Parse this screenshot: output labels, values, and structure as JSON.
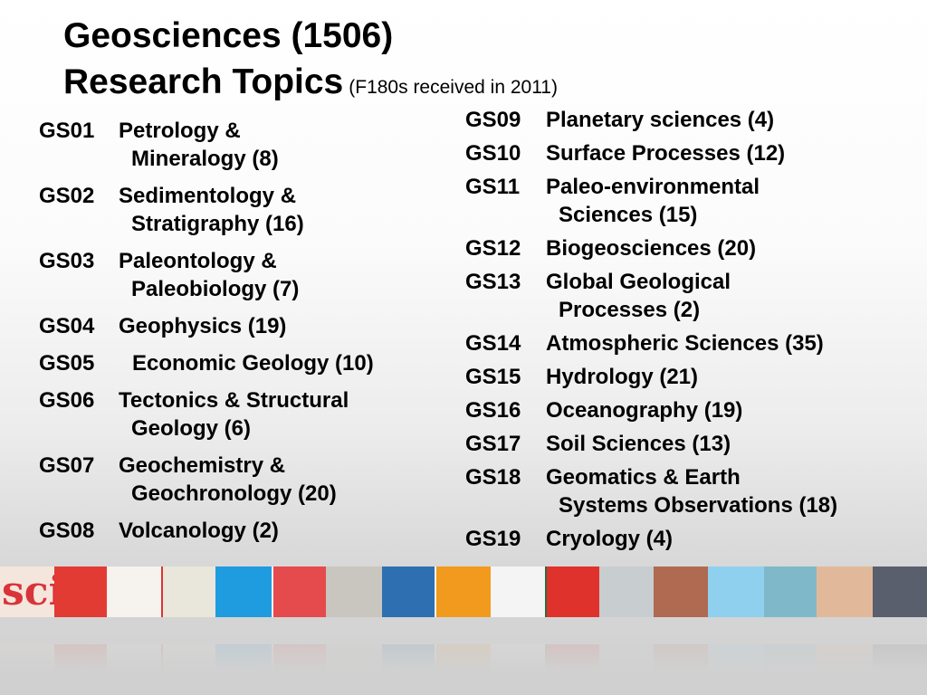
{
  "title": {
    "line1": "Geosciences (1506)",
    "line2": "Research Topics",
    "note": "(F180s received in 2011)"
  },
  "topics_left": [
    {
      "code": "GS01",
      "name": "Petrology &",
      "cont": "Mineralogy (8)"
    },
    {
      "code": "GS02",
      "name": "Sedimentology &",
      "cont": "Stratigraphy (16)"
    },
    {
      "code": "GS03",
      "name": "Paleontology &",
      "cont": "Paleobiology (7)"
    },
    {
      "code": "GS04",
      "name": "Geophysics (19)",
      "cont": ""
    },
    {
      "code": "GS05",
      "name": "Economic Geology (10)",
      "cont": ""
    },
    {
      "code": "GS06",
      "name": "Tectonics & Structural",
      "cont": "Geology (6)"
    },
    {
      "code": "GS07",
      "name": "Geochemistry &",
      "cont": "Geochronology (20)"
    },
    {
      "code": "GS08",
      "name": "Volcanology (2)",
      "cont": ""
    }
  ],
  "topics_right": [
    {
      "code": "GS09",
      "name": "Planetary sciences (4)",
      "cont": ""
    },
    {
      "code": "GS10",
      "name": "Surface Processes (12)",
      "cont": ""
    },
    {
      "code": "GS11",
      "name": "Paleo-environmental",
      "cont": "Sciences (15)"
    },
    {
      "code": "GS12",
      "name": "Biogeosciences (20)",
      "cont": ""
    },
    {
      "code": "GS13",
      "name": "Global Geological",
      "cont": "Processes (2)"
    },
    {
      "code": "GS14",
      "name": "Atmospheric Sciences (35)",
      "cont": ""
    },
    {
      "code": "GS15",
      "name": "Hydrology (21)",
      "cont": ""
    },
    {
      "code": "GS16",
      "name": "Oceanography (19)",
      "cont": ""
    },
    {
      "code": "GS17",
      "name": "Soil Sciences (13)",
      "cont": ""
    },
    {
      "code": "GS18",
      "name": "Geomatics & Earth",
      "cont": "Systems Observations (18)"
    },
    {
      "code": "GS19",
      "name": "Cryology (4)",
      "cont": ""
    }
  ],
  "strip": {
    "sci_text": "sci",
    "tiles": [
      {
        "name": "sci-logo-tile",
        "color": "#f4e6dc"
      },
      {
        "name": "red-blue-gap-tile",
        "color": "#e23b33"
      },
      {
        "name": "petri-dish-tile",
        "color": "#f6f2ee"
      },
      {
        "name": "red-gap-tile",
        "color": "#e0332f"
      },
      {
        "name": "light-bulb-tile",
        "color": "#e9e6dc"
      },
      {
        "name": "blue-tile-1",
        "color": "#1f9be0"
      },
      {
        "name": "white-gap-tile",
        "color": "#f4f4f4"
      },
      {
        "name": "red-swirl-tile",
        "color": "#e54a4c"
      },
      {
        "name": "skeleton-tile",
        "color": "#c9c6bf"
      },
      {
        "name": "blue-network-tile",
        "color": "#2d6fb0"
      },
      {
        "name": "white-gap-tile-2",
        "color": "#f6f6f6"
      },
      {
        "name": "orange-tile",
        "color": "#f29a1e"
      },
      {
        "name": "white-gap-tile-3",
        "color": "#f4f4f4"
      },
      {
        "name": "insect-eye-tile",
        "color": "#2f6a3f"
      },
      {
        "name": "red-tile",
        "color": "#e0322c"
      },
      {
        "name": "chalkboard-tile",
        "color": "#c8cdd0"
      },
      {
        "name": "anatomy-tile",
        "color": "#b06a52"
      },
      {
        "name": "light-blue-tile",
        "color": "#8fd0ef"
      },
      {
        "name": "test-tubes-tile",
        "color": "#7fb9c9"
      },
      {
        "name": "child-face-tile",
        "color": "#e1b99a"
      },
      {
        "name": "bubbles-tile",
        "color": "#5a5f6e"
      }
    ]
  }
}
